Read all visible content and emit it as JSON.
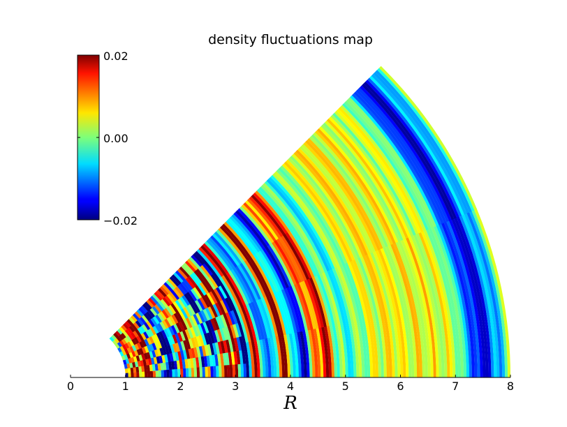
{
  "chart_data": {
    "type": "heatmap",
    "geometry": "polar-wedge",
    "title": "density fluctuations map",
    "xlabel": "R",
    "ylabel": "",
    "xlim": [
      0,
      8
    ],
    "x_ticks": [
      "0",
      "1",
      "2",
      "3",
      "4",
      "5",
      "6",
      "7",
      "8"
    ],
    "r_range": [
      1,
      8
    ],
    "theta_range_deg": [
      0,
      45
    ],
    "colormap": "jet",
    "colorbar": {
      "range": [
        -0.02,
        0.02
      ],
      "tick_labels": [
        "0.02",
        "0.00",
        "−0.02"
      ],
      "placement": "top-left"
    },
    "ring_profile": [
      {
        "r": 1.0,
        "value": 0.0
      },
      {
        "r": 1.4,
        "value": 0.02
      },
      {
        "r": 1.8,
        "value": -0.02
      },
      {
        "r": 2.2,
        "value": 0.015
      },
      {
        "r": 2.6,
        "value": -0.015
      },
      {
        "r": 3.0,
        "value": 0.02
      },
      {
        "r": 3.2,
        "value": -0.02
      },
      {
        "r": 3.4,
        "value": 0.02
      },
      {
        "r": 3.6,
        "value": -0.02
      },
      {
        "r": 3.9,
        "value": 0.02
      },
      {
        "r": 4.2,
        "value": -0.018
      },
      {
        "r": 4.6,
        "value": 0.018
      },
      {
        "r": 5.0,
        "value": -0.006
      },
      {
        "r": 5.5,
        "value": 0.004
      },
      {
        "r": 6.0,
        "value": 0.005
      },
      {
        "r": 6.5,
        "value": 0.004
      },
      {
        "r": 7.0,
        "value": 0.003
      },
      {
        "r": 7.5,
        "value": -0.018
      },
      {
        "r": 8.0,
        "value": 0.0
      }
    ]
  }
}
